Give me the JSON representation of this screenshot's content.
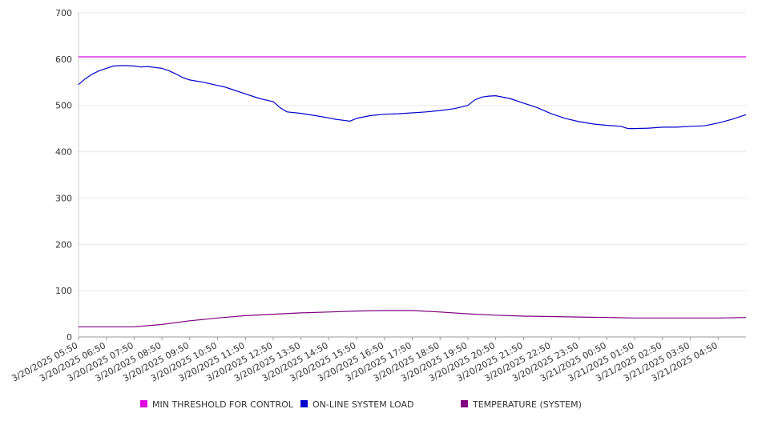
{
  "chart_data": {
    "type": "line",
    "title": "",
    "xlabel": "",
    "ylabel": "",
    "ylim": [
      0,
      700
    ],
    "y_ticks": [
      0,
      100,
      200,
      300,
      400,
      500,
      600,
      700
    ],
    "grid": "horizontal",
    "legend_position": "bottom",
    "x_range": [
      "3/20/2025 05:50",
      "3/21/2025 05:50"
    ],
    "x_tick_labels": [
      "3/20/2025 05:50",
      "3/20/2025 06:50",
      "3/20/2025 07:50",
      "3/20/2025 08:50",
      "3/20/2025 09:50",
      "3/20/2025 10:50",
      "3/20/2025 11:50",
      "3/20/2025 12:50",
      "3/20/2025 13:50",
      "3/20/2025 14:50",
      "3/20/2025 15:50",
      "3/20/2025 16:50",
      "3/20/2025 17:50",
      "3/20/2025 18:50",
      "3/20/2025 19:50",
      "3/20/2025 20:50",
      "3/20/2025 21:50",
      "3/20/2025 22:50",
      "3/20/2025 23:50",
      "3/21/2025 00:50",
      "3/21/2025 01:50",
      "3/21/2025 02:50",
      "3/21/2025 03:50",
      "3/21/2025 04:50"
    ],
    "series": [
      {
        "name": "MIN THRESHOLD FOR CONTROL",
        "color": "#e000e0",
        "x": [
          "3/20/2025 05:50",
          "3/21/2025 05:50"
        ],
        "y": [
          605,
          605
        ]
      },
      {
        "name": "ON-LINE SYSTEM LOAD",
        "color": "#0000cc",
        "x": [
          "3/20/2025 05:50",
          "3/20/2025 06:05",
          "3/20/2025 06:20",
          "3/20/2025 06:35",
          "3/20/2025 06:50",
          "3/20/2025 07:05",
          "3/20/2025 07:20",
          "3/20/2025 07:35",
          "3/20/2025 07:50",
          "3/20/2025 08:05",
          "3/20/2025 08:20",
          "3/20/2025 08:35",
          "3/20/2025 08:50",
          "3/20/2025 09:05",
          "3/20/2025 09:20",
          "3/20/2025 09:35",
          "3/20/2025 09:50",
          "3/20/2025 10:20",
          "3/20/2025 10:50",
          "3/20/2025 11:05",
          "3/20/2025 11:20",
          "3/20/2025 11:50",
          "3/20/2025 12:20",
          "3/20/2025 12:50",
          "3/20/2025 13:05",
          "3/20/2025 13:20",
          "3/20/2025 13:50",
          "3/20/2025 14:20",
          "3/20/2025 14:50",
          "3/20/2025 15:05",
          "3/20/2025 15:20",
          "3/20/2025 15:35",
          "3/20/2025 15:50",
          "3/20/2025 16:20",
          "3/20/2025 16:50",
          "3/20/2025 17:20",
          "3/20/2025 17:50",
          "3/20/2025 18:20",
          "3/20/2025 18:50",
          "3/20/2025 19:20",
          "3/20/2025 19:50",
          "3/20/2025 20:05",
          "3/20/2025 20:20",
          "3/20/2025 20:35",
          "3/20/2025 20:50",
          "3/20/2025 21:20",
          "3/20/2025 21:50",
          "3/20/2025 22:20",
          "3/20/2025 22:50",
          "3/20/2025 23:20",
          "3/20/2025 23:50",
          "3/21/2025 00:20",
          "3/21/2025 00:50",
          "3/21/2025 01:20",
          "3/21/2025 01:35",
          "3/21/2025 01:50",
          "3/21/2025 02:20",
          "3/21/2025 02:50",
          "3/21/2025 03:20",
          "3/21/2025 03:50",
          "3/21/2025 04:20",
          "3/21/2025 04:50",
          "3/21/2025 05:20",
          "3/21/2025 05:50"
        ],
        "y": [
          545,
          558,
          568,
          575,
          580,
          585,
          586,
          586,
          585,
          583,
          584,
          582,
          580,
          575,
          568,
          560,
          555,
          550,
          543,
          540,
          535,
          525,
          515,
          508,
          495,
          486,
          483,
          478,
          473,
          470,
          468,
          466,
          472,
          478,
          481,
          482,
          484,
          486,
          489,
          493,
          500,
          512,
          518,
          520,
          521,
          515,
          505,
          495,
          482,
          472,
          465,
          460,
          457,
          455,
          450,
          450,
          451,
          453,
          453,
          455,
          456,
          462,
          470,
          480
        ]
      },
      {
        "name": "TEMPERATURE (SYSTEM)",
        "color": "#800080",
        "x": [
          "3/20/2025 05:50",
          "3/20/2025 06:50",
          "3/20/2025 07:50",
          "3/20/2025 08:50",
          "3/20/2025 09:50",
          "3/20/2025 10:50",
          "3/20/2025 11:50",
          "3/20/2025 12:50",
          "3/20/2025 13:50",
          "3/20/2025 14:50",
          "3/20/2025 15:50",
          "3/20/2025 16:50",
          "3/20/2025 17:50",
          "3/20/2025 18:50",
          "3/20/2025 19:50",
          "3/20/2025 20:50",
          "3/20/2025 21:50",
          "3/20/2025 22:50",
          "3/20/2025 23:50",
          "3/21/2025 00:50",
          "3/21/2025 01:50",
          "3/21/2025 02:50",
          "3/21/2025 03:50",
          "3/21/2025 04:50",
          "3/21/2025 05:50"
        ],
        "y": [
          22,
          22,
          22,
          27,
          35,
          41,
          46,
          49,
          52,
          54,
          56,
          57,
          57,
          54,
          50,
          47,
          45,
          44,
          43,
          42,
          41,
          41,
          41,
          41,
          42
        ]
      }
    ]
  }
}
